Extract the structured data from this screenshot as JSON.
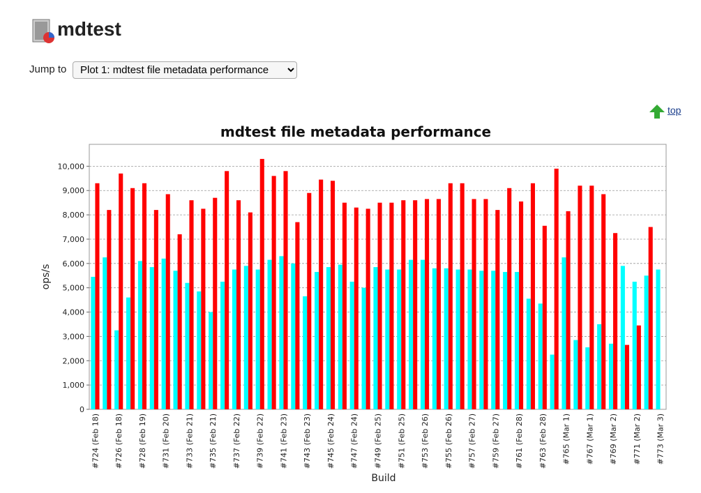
{
  "header": {
    "title": "mdtest"
  },
  "jump": {
    "label": "Jump to",
    "selected": "Plot 1: mdtest file metadata performance"
  },
  "top_link": "top",
  "chart_data": {
    "type": "bar",
    "title": "mdtest file metadata performance",
    "x_label": "Build",
    "y_label": "ops/s",
    "categories": [
      "#724 (Feb 18)",
      null,
      "#726 (Feb 18)",
      null,
      "#728 (Feb 19)",
      null,
      "#731 (Feb 20)",
      null,
      "#733 (Feb 21)",
      null,
      "#735 (Feb 21)",
      null,
      "#737 (Feb 22)",
      null,
      "#739 (Feb 22)",
      null,
      "#741 (Feb 23)",
      null,
      "#743 (Feb 23)",
      null,
      "#745 (Feb 24)",
      null,
      "#747 (Feb 24)",
      null,
      "#749 (Feb 25)",
      null,
      "#751 (Feb 25)",
      null,
      "#753 (Feb 26)",
      null,
      "#755 (Feb 26)",
      null,
      "#757 (Feb 27)",
      null,
      "#759 (Feb 27)",
      null,
      "#761 (Feb 28)",
      null,
      "#763 (Feb 28)",
      null,
      "#765 (Mar 1)",
      null,
      "#767 (Mar 1)",
      null,
      "#769 (Mar 2)",
      null,
      "#771 (Mar 2)",
      null,
      "#773 (Mar 3)"
    ],
    "series": [
      {
        "color": "#00ffff",
        "values": [
          5450,
          6250,
          3250,
          4600,
          6100,
          5850,
          6200,
          5700,
          5200,
          4850,
          4000,
          5250,
          5750,
          5900,
          5750,
          6150,
          6300,
          6000,
          4650,
          5650,
          5850,
          5950,
          5250,
          5000,
          5850,
          5750,
          5750,
          6150,
          6150,
          5800,
          5800,
          5750,
          5750,
          5700,
          5700,
          5650,
          5650,
          4550,
          4350,
          2250,
          6250,
          2850,
          2550,
          3500,
          2700,
          5900,
          5250,
          5500,
          5750
        ]
      },
      {
        "color": "#ff0000",
        "values": [
          9300,
          8200,
          9700,
          9100,
          9300,
          8200,
          8850,
          7200,
          8600,
          8250,
          8700,
          9800,
          8600,
          8100,
          10300,
          9600,
          9800,
          7700,
          8900,
          9450,
          9400,
          8500,
          8300,
          8250,
          8500,
          8500,
          8600,
          8600,
          8650,
          8650,
          9300,
          9300,
          8650,
          8650,
          8200,
          9100,
          8550,
          9300,
          7550,
          9900,
          8150,
          9200,
          9200,
          8850,
          7250,
          2650,
          3450,
          7500,
          null
        ]
      }
    ],
    "ylim": [
      0,
      10900
    ],
    "yticks": [
      0,
      {
        "value": 1000,
        "label": "1,000"
      },
      {
        "value": 2000,
        "label": "2,000"
      },
      {
        "value": 3000,
        "label": "3,000"
      },
      {
        "value": 4000,
        "label": "4,000"
      },
      {
        "value": 5000,
        "label": "5,000"
      },
      {
        "value": 6000,
        "label": "6,000"
      },
      {
        "value": 7000,
        "label": "7,000"
      },
      {
        "value": 8000,
        "label": "8,000"
      },
      {
        "value": 9000,
        "label": "9,000"
      },
      {
        "value": 10000,
        "label": "10,000"
      }
    ],
    "grid": true
  }
}
